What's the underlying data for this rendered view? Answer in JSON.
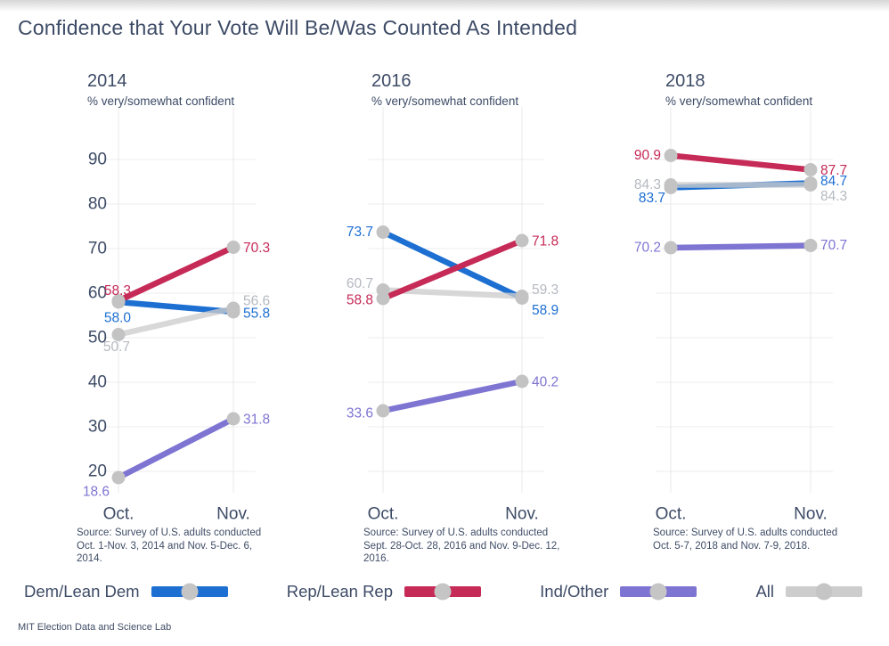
{
  "page": {
    "title": "Confidence that Your Vote Will Be/Was Counted As Intended",
    "attribution": "MIT Election Data and Science Lab"
  },
  "colors": {
    "dem": "#1d6fd2",
    "rep": "#c62a57",
    "ind": "#7e74d2",
    "all": "#cdcdcd",
    "dem_label": "#1d6fd2",
    "rep_label": "#c62a57",
    "ind_label": "#7e74d2",
    "all_label": "#b5b9c0",
    "dot": "#c3c3c3",
    "axis_text": "#3d4b66",
    "grid_horizontal": "#ececec",
    "grid_vertical": "#e9e9e9"
  },
  "legend": [
    {
      "label": "Dem/Lean Dem",
      "series": "dem"
    },
    {
      "label": "Rep/Lean Rep",
      "series": "rep"
    },
    {
      "label": "Ind/Other",
      "series": "ind"
    },
    {
      "label": "All",
      "series": "all"
    }
  ],
  "chart_data": {
    "type": "line",
    "subtype": "slope",
    "title": "Confidence that Your Vote Will Be/Was Counted As Intended",
    "categories": [
      "Oct.",
      "Nov."
    ],
    "y_ticks": [
      20,
      30,
      40,
      50,
      60,
      70,
      80,
      90
    ],
    "ylim": [
      13,
      100
    ],
    "grid": true,
    "legend_position": "bottom",
    "panels": [
      {
        "title": "2014",
        "subtitle": "% very/somewhat confident",
        "source": "Source: Survey of U.S. adults conducted Oct. 1-Nov. 3, 2014 and Nov. 5-Dec. 6, 2014.",
        "series": [
          {
            "name": "Dem/Lean Dem",
            "key": "dem",
            "values": [
              58.0,
              55.8
            ]
          },
          {
            "name": "Rep/Lean Rep",
            "key": "rep",
            "values": [
              58.3,
              70.3
            ]
          },
          {
            "name": "Ind/Other",
            "key": "ind",
            "values": [
              18.6,
              31.8
            ]
          },
          {
            "name": "All",
            "key": "all",
            "values": [
              50.7,
              56.6
            ]
          }
        ]
      },
      {
        "title": "2016",
        "subtitle": "% very/somewhat confident",
        "source": "Source: Survey of U.S. adults conducted Sept. 28-Oct. 28, 2016 and Nov. 9-Dec. 12, 2016.",
        "series": [
          {
            "name": "Dem/Lean Dem",
            "key": "dem",
            "values": [
              73.7,
              58.9
            ]
          },
          {
            "name": "Rep/Lean Rep",
            "key": "rep",
            "values": [
              58.8,
              71.8
            ]
          },
          {
            "name": "Ind/Other",
            "key": "ind",
            "values": [
              33.6,
              40.2
            ]
          },
          {
            "name": "All",
            "key": "all",
            "values": [
              60.7,
              59.3
            ]
          }
        ]
      },
      {
        "title": "2018",
        "subtitle": "% very/somewhat confident",
        "source": "Source: Survey of U.S. adults conducted Oct. 5-7, 2018 and Nov. 7-9, 2018.",
        "series": [
          {
            "name": "Dem/Lean Dem",
            "key": "dem",
            "values": [
              83.7,
              84.7
            ]
          },
          {
            "name": "Rep/Lean Rep",
            "key": "rep",
            "values": [
              90.9,
              87.7
            ]
          },
          {
            "name": "Ind/Other",
            "key": "ind",
            "values": [
              70.2,
              70.7
            ]
          },
          {
            "name": "All",
            "key": "all",
            "values": [
              84.3,
              84.3
            ]
          }
        ]
      }
    ]
  }
}
